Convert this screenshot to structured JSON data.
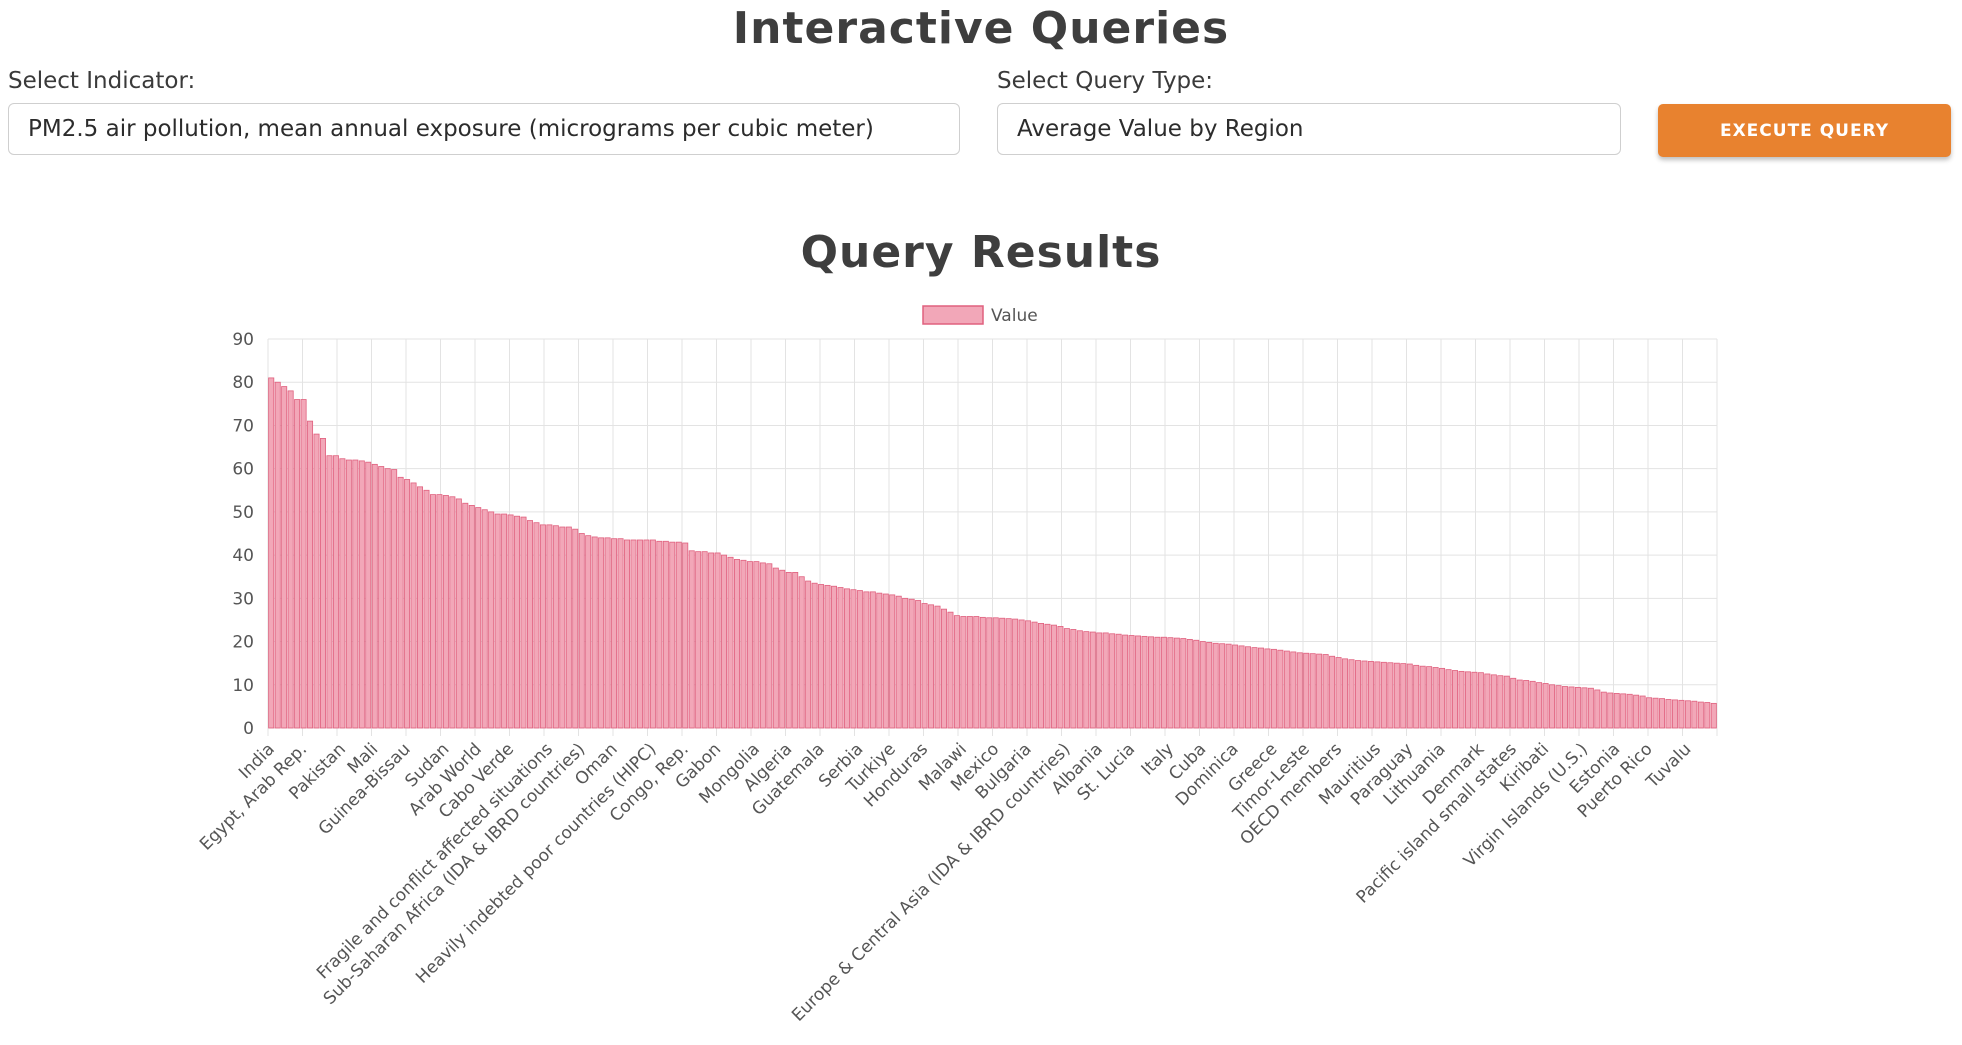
{
  "header": {
    "title": "Interactive Queries"
  },
  "controls": {
    "indicator_label": "Select Indicator:",
    "indicator_value": "PM2.5 air pollution, mean annual exposure (micrograms per cubic meter)",
    "query_type_label": "Select Query Type:",
    "query_type_value": "Average Value by Region",
    "execute_label": "EXECUTE QUERY",
    "button_color": "#e8822f"
  },
  "results": {
    "title": "Query Results"
  },
  "chart_data": {
    "type": "bar",
    "legend": [
      "Value"
    ],
    "legend_position": "top-center",
    "bar_fill": "#f2a7b8",
    "bar_stroke": "#e0607e",
    "ylim": [
      0,
      90
    ],
    "yticks": [
      0,
      10,
      20,
      30,
      40,
      50,
      60,
      70,
      80,
      90
    ],
    "grid": true,
    "labeled_categories": [
      "India",
      "Egypt, Arab Rep.",
      "Pakistan",
      "Mali",
      "Guinea-Bissau",
      "Sudan",
      "Arab World",
      "Cabo Verde",
      "Fragile and conflict affected situations",
      "Sub-Saharan Africa (IDA & IBRD countries)",
      "Oman",
      "Heavily indebted poor countries (HIPC)",
      "Congo, Rep.",
      "Gabon",
      "Mongolia",
      "Algeria",
      "Guatemala",
      "Serbia",
      "Turkiye",
      "Honduras",
      "Malawi",
      "Mexico",
      "Bulgaria",
      "Europe & Central Asia (IDA & IBRD countries)",
      "Albania",
      "St. Lucia",
      "Italy",
      "Cuba",
      "Dominica",
      "Greece",
      "Timor-Leste",
      "OECD members",
      "Mauritius",
      "Paraguay",
      "Lithuania",
      "Denmark",
      "Pacific island small states",
      "Kiribati",
      "Virgin Islands (U.S.)",
      "Estonia",
      "Puerto Rico",
      "Tuvalu"
    ],
    "values": [
      81.0,
      80.0,
      79.0,
      78.0,
      76.0,
      76.0,
      71.0,
      68.0,
      67.0,
      63.0,
      63.0,
      62.3,
      62.0,
      62.0,
      61.8,
      61.5,
      61.0,
      60.5,
      60.0,
      59.8,
      58.0,
      57.5,
      56.7,
      55.8,
      55.0,
      54.0,
      54.0,
      53.8,
      53.5,
      53.0,
      52.0,
      51.5,
      51.0,
      50.5,
      50.0,
      49.5,
      49.5,
      49.3,
      49.0,
      48.8,
      48.0,
      47.5,
      47.0,
      47.0,
      46.8,
      46.5,
      46.5,
      46.0,
      45.0,
      44.5,
      44.2,
      44.0,
      44.0,
      43.8,
      43.8,
      43.5,
      43.5,
      43.5,
      43.5,
      43.5,
      43.2,
      43.2,
      43.0,
      43.0,
      42.8,
      41.0,
      40.8,
      40.8,
      40.5,
      40.5,
      40.0,
      39.5,
      39.0,
      38.8,
      38.5,
      38.5,
      38.2,
      38.0,
      37.0,
      36.5,
      36.0,
      36.0,
      35.0,
      34.0,
      33.5,
      33.2,
      33.0,
      32.8,
      32.5,
      32.2,
      32.0,
      31.8,
      31.5,
      31.5,
      31.2,
      31.0,
      30.8,
      30.5,
      30.0,
      29.8,
      29.5,
      28.8,
      28.5,
      28.2,
      27.5,
      26.8,
      26.0,
      25.8,
      25.8,
      25.8,
      25.6,
      25.5,
      25.5,
      25.4,
      25.3,
      25.2,
      25.0,
      24.8,
      24.5,
      24.2,
      24.0,
      23.8,
      23.5,
      23.0,
      22.8,
      22.5,
      22.3,
      22.2,
      22.0,
      22.0,
      21.8,
      21.7,
      21.5,
      21.4,
      21.3,
      21.2,
      21.1,
      21.0,
      21.0,
      20.9,
      20.8,
      20.7,
      20.5,
      20.3,
      20.0,
      19.8,
      19.6,
      19.5,
      19.4,
      19.2,
      19.0,
      18.8,
      18.6,
      18.5,
      18.3,
      18.2,
      18.0,
      17.8,
      17.6,
      17.4,
      17.3,
      17.2,
      17.1,
      17.0,
      16.6,
      16.3,
      16.0,
      15.8,
      15.6,
      15.5,
      15.4,
      15.3,
      15.2,
      15.1,
      15.0,
      14.9,
      14.8,
      14.5,
      14.3,
      14.2,
      14.0,
      13.8,
      13.5,
      13.3,
      13.1,
      13.0,
      12.9,
      12.8,
      12.5,
      12.3,
      12.1,
      12.0,
      11.5,
      11.1,
      11.0,
      10.8,
      10.5,
      10.3,
      10.0,
      9.8,
      9.6,
      9.5,
      9.4,
      9.3,
      9.2,
      8.8,
      8.3,
      8.1,
      8.0,
      7.9,
      7.8,
      7.6,
      7.4,
      7.0,
      6.9,
      6.8,
      6.6,
      6.5,
      6.4,
      6.3,
      6.2,
      6.0,
      5.9,
      5.7
    ]
  }
}
